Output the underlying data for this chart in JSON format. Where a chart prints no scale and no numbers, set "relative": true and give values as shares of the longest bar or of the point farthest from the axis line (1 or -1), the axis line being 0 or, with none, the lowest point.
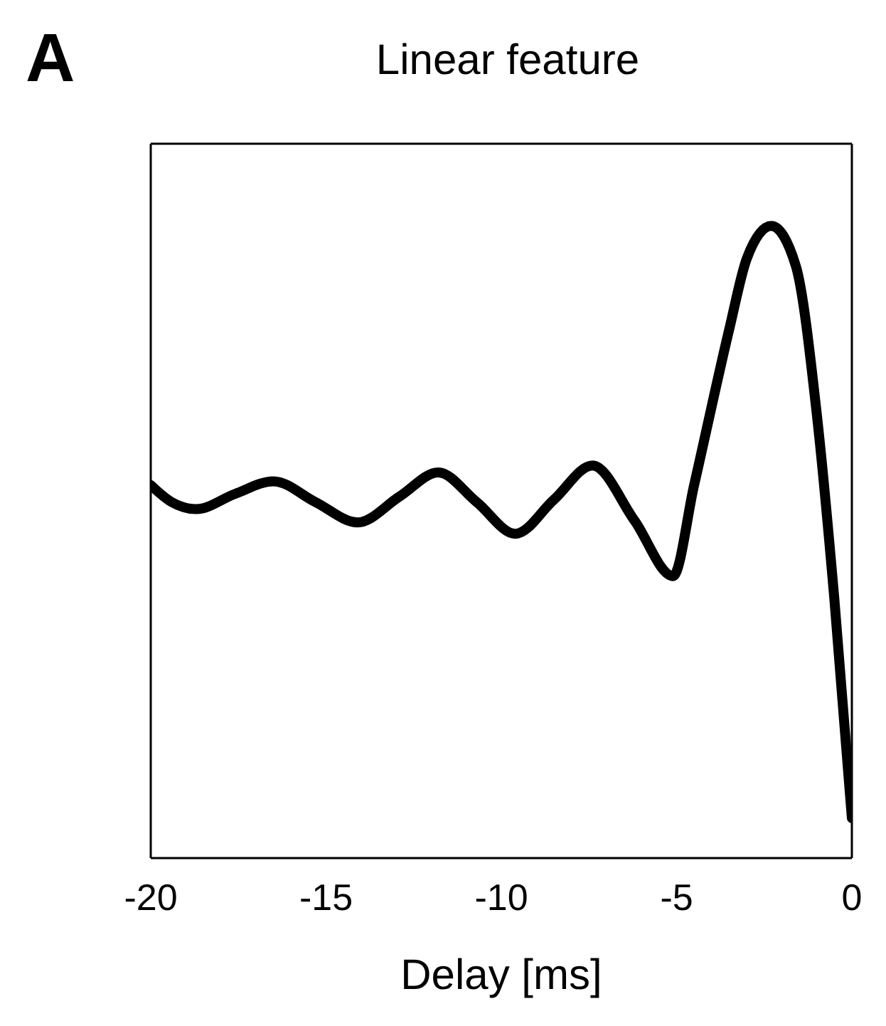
{
  "chart_data": {
    "type": "line",
    "title": "Linear feature",
    "xlabel": "Delay [ms]",
    "annotations": [
      "A"
    ],
    "relative": true,
    "tick_labels": "x",
    "grid": false,
    "marker": "none",
    "line_style": "solid",
    "xlim": [
      -20,
      0
    ],
    "xticks": [
      -20,
      -15,
      -10,
      -5,
      0
    ],
    "series": [
      {
        "color": "#000000",
        "x": [
          -20,
          -19.4,
          -18.7,
          -17.6,
          -16.5,
          -15.3,
          -14.1,
          -12.9,
          -11.8,
          -10.7,
          -9.6,
          -8.5,
          -7.4,
          -6.2,
          -5.1,
          -4.5,
          -3.5,
          -3.0,
          -2.3,
          -1.6,
          -1.0,
          -0.5,
          0
        ],
        "values": [
          0.59,
          0.563,
          0.552,
          0.576,
          0.596,
          0.563,
          0.531,
          0.572,
          0.61,
          0.563,
          0.513,
          0.567,
          0.621,
          0.534,
          0.446,
          0.59,
          0.836,
          0.948,
          1,
          0.937,
          0.702,
          0.41,
          0.063
        ]
      }
    ]
  }
}
